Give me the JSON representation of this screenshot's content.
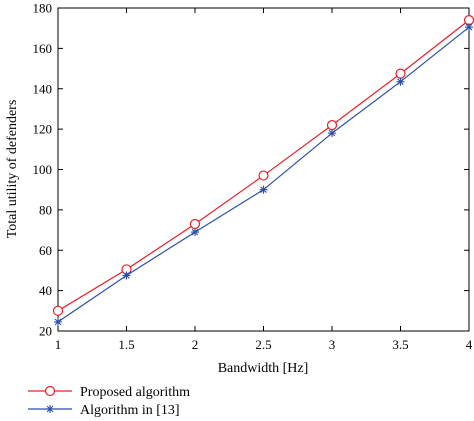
{
  "chart_data": {
    "type": "line",
    "title": "",
    "xlabel": "Bandwidth [Hz]",
    "ylabel": "Total utility of defenders",
    "xlim": [
      1,
      4
    ],
    "ylim": [
      20,
      180
    ],
    "xticks": [
      1,
      1.5,
      2,
      2.5,
      3,
      3.5,
      4
    ],
    "xtick_labels": [
      "1",
      "1.5",
      "2",
      "2.5",
      "3",
      "3.5",
      "4"
    ],
    "yticks": [
      20,
      40,
      60,
      80,
      100,
      120,
      140,
      160,
      180
    ],
    "ytick_labels": [
      "20",
      "40",
      "60",
      "80",
      "100",
      "120",
      "140",
      "160",
      "180"
    ],
    "grid": false,
    "legend_position": "bottom-left-outside",
    "x": [
      1,
      1.5,
      2,
      2.5,
      3,
      3.5,
      4
    ],
    "series": [
      {
        "name": "Proposed algorithm",
        "values": [
          30,
          50.5,
          73,
          97,
          122,
          147.5,
          174
        ],
        "color": "#e8202a",
        "marker": "circle"
      },
      {
        "name": "Algorithm in [13]",
        "values": [
          24.5,
          47.5,
          69,
          90,
          118,
          143.5,
          170.5
        ],
        "color": "#2b4fa8",
        "marker": "asterisk"
      }
    ]
  }
}
